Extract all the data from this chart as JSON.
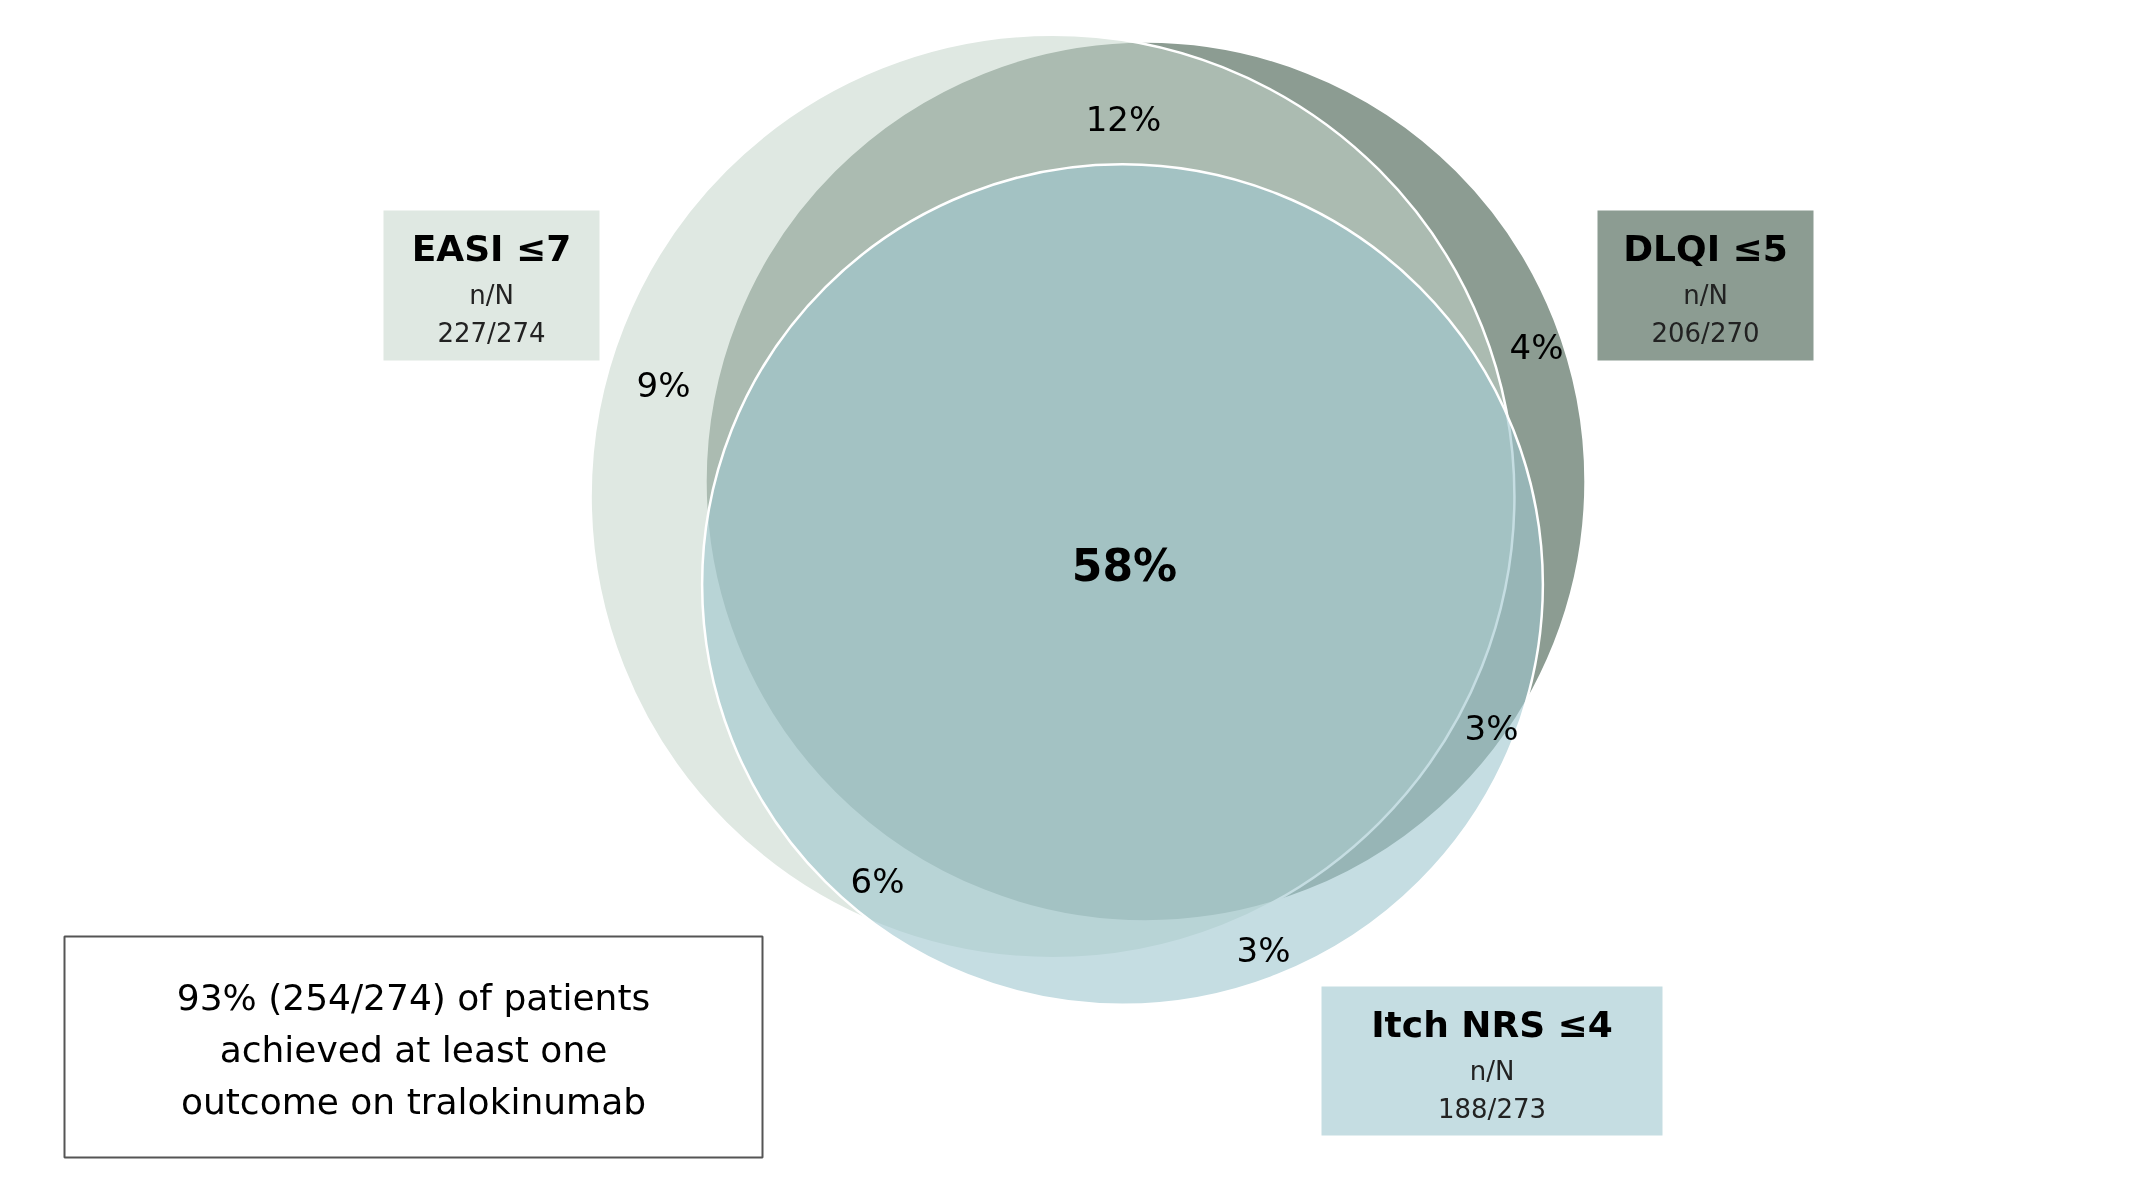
{
  "chart_data": {
    "type": "other",
    "categories": [
      "EASI ≤7",
      "DLQI ≤5",
      "Itch NRS ≤4"
    ],
    "values": [
      227,
      206,
      188
    ],
    "value_labels": [
      "227/274",
      "206/270",
      "188/273"
    ],
    "colors": [
      "#dfe8e2",
      "#8c9c92",
      "#c5dde2"
    ],
    "annotations": [
      "n/N",
      "n/N",
      "n/N",
      "58%",
      "12%",
      "9%",
      "4%",
      "3%",
      "6%",
      "3%",
      "93% (254/274) of patients achieved at least one outcome on tralokinumab"
    ]
  }
}
